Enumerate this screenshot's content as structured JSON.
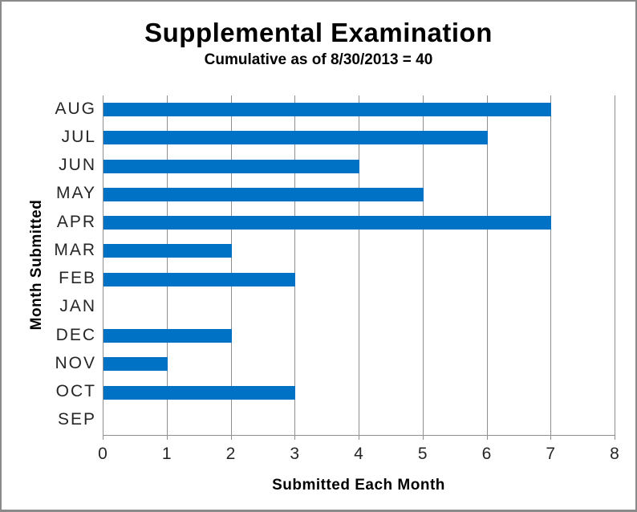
{
  "header": {
    "title": "Supplemental Examination",
    "subtitle": "Cumulative as of 8/30/2013 = 40"
  },
  "chart_data": {
    "type": "bar",
    "orientation": "horizontal",
    "title": "Supplemental Examination",
    "subtitle": "Cumulative as of 8/30/2013 = 40",
    "xlabel": "Submitted Each Month",
    "ylabel": "Month Submitted",
    "categories": [
      "AUG",
      "JUL",
      "JUN",
      "MAY",
      "APR",
      "MAR",
      "FEB",
      "JAN",
      "DEC",
      "NOV",
      "OCT",
      "SEP"
    ],
    "values": [
      7,
      6,
      4,
      5,
      7,
      2,
      3,
      0,
      2,
      1,
      3,
      0
    ],
    "cumulative_total": 40,
    "xlim": [
      0,
      8
    ],
    "x_ticks": [
      0,
      1,
      2,
      3,
      4,
      5,
      6,
      7,
      8
    ],
    "grid": true,
    "legend": "none",
    "bar_color": "#0072c6",
    "gridline_color": "#8e8e8e",
    "text_color": "#262626"
  }
}
